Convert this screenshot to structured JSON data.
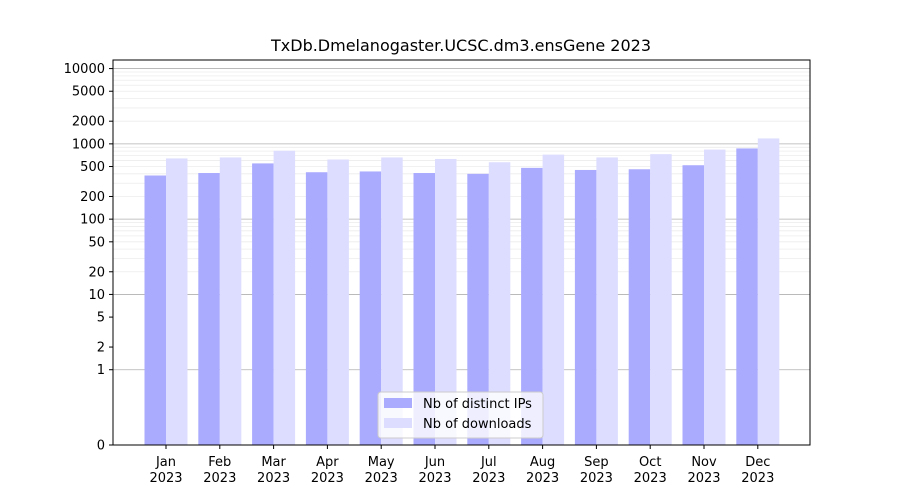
{
  "chart_data": {
    "type": "bar",
    "title": "TxDb.Dmelanogaster.UCSC.dm3.ensGene 2023",
    "xlabel": "",
    "ylabel": "",
    "y_scale": "symlog",
    "ylim": [
      0,
      13000
    ],
    "grid": true,
    "legend_position": "lower center",
    "categories": [
      [
        "Jan",
        "2023"
      ],
      [
        "Feb",
        "2023"
      ],
      [
        "Mar",
        "2023"
      ],
      [
        "Apr",
        "2023"
      ],
      [
        "May",
        "2023"
      ],
      [
        "Jun",
        "2023"
      ],
      [
        "Jul",
        "2023"
      ],
      [
        "Aug",
        "2023"
      ],
      [
        "Sep",
        "2023"
      ],
      [
        "Oct",
        "2023"
      ],
      [
        "Nov",
        "2023"
      ],
      [
        "Dec",
        "2023"
      ]
    ],
    "y_ticks": [
      0,
      1,
      2,
      5,
      10,
      20,
      50,
      100,
      200,
      500,
      1000,
      2000,
      5000,
      10000
    ],
    "y_tick_labels": [
      "0",
      "1",
      "2",
      "5",
      "10",
      "20",
      "50",
      "100",
      "200",
      "500",
      "1000",
      "2000",
      "5000",
      "10000"
    ],
    "series": [
      {
        "name": "Nb of distinct IPs",
        "color": "#aaaaff",
        "values": [
          380,
          410,
          550,
          420,
          430,
          410,
          400,
          480,
          450,
          460,
          520,
          870
        ]
      },
      {
        "name": "Nb of downloads",
        "color": "#ddddff",
        "values": [
          640,
          660,
          810,
          620,
          660,
          630,
          570,
          720,
          660,
          730,
          840,
          1180
        ]
      }
    ]
  }
}
